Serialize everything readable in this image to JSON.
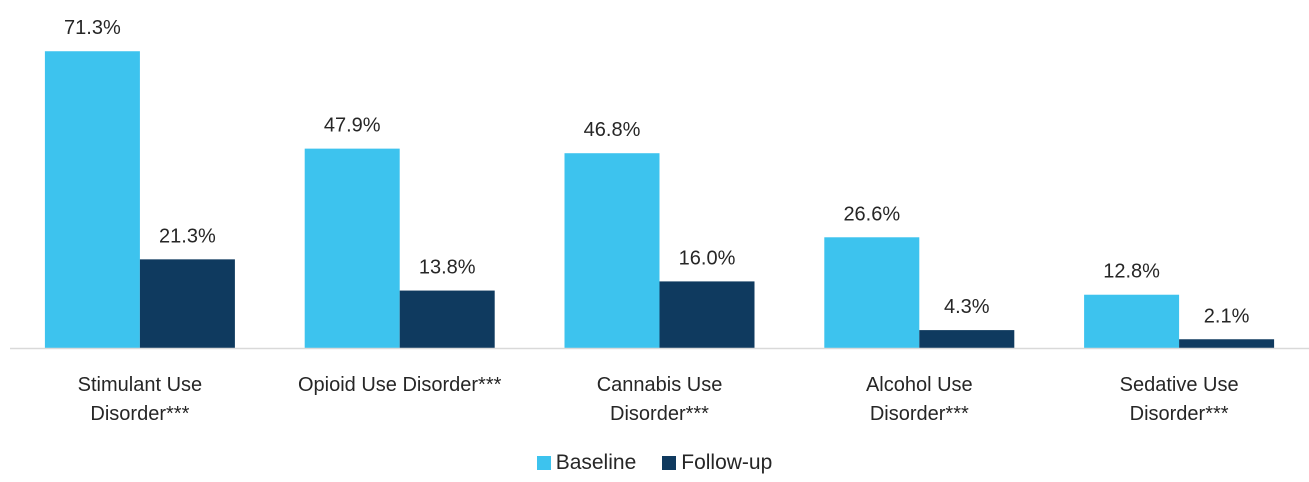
{
  "chart_data": {
    "type": "bar",
    "categories": [
      [
        "Stimulant Use",
        "Disorder***"
      ],
      [
        "Opioid Use Disorder***"
      ],
      [
        "Cannabis Use",
        "Disorder***"
      ],
      [
        "Alcohol Use",
        "Disorder***"
      ],
      [
        "Sedative Use",
        "Disorder***"
      ]
    ],
    "series": [
      {
        "name": "Baseline",
        "color": "#3DC3EE",
        "values": [
          71.3,
          47.9,
          46.8,
          26.6,
          12.8
        ],
        "labels": [
          "71.3%",
          "47.9%",
          "46.8%",
          "26.6%",
          "12.8%"
        ]
      },
      {
        "name": "Follow-up",
        "color": "#0F3A5F",
        "values": [
          21.3,
          13.8,
          16.0,
          4.3,
          2.1
        ],
        "labels": [
          "21.3%",
          "13.8%",
          "16.0%",
          "4.3%",
          "2.1%"
        ]
      }
    ],
    "ylim": [
      0,
      74
    ],
    "grid": false,
    "legend_position": "bottom-center",
    "axis_color": "#D9D9D9"
  }
}
